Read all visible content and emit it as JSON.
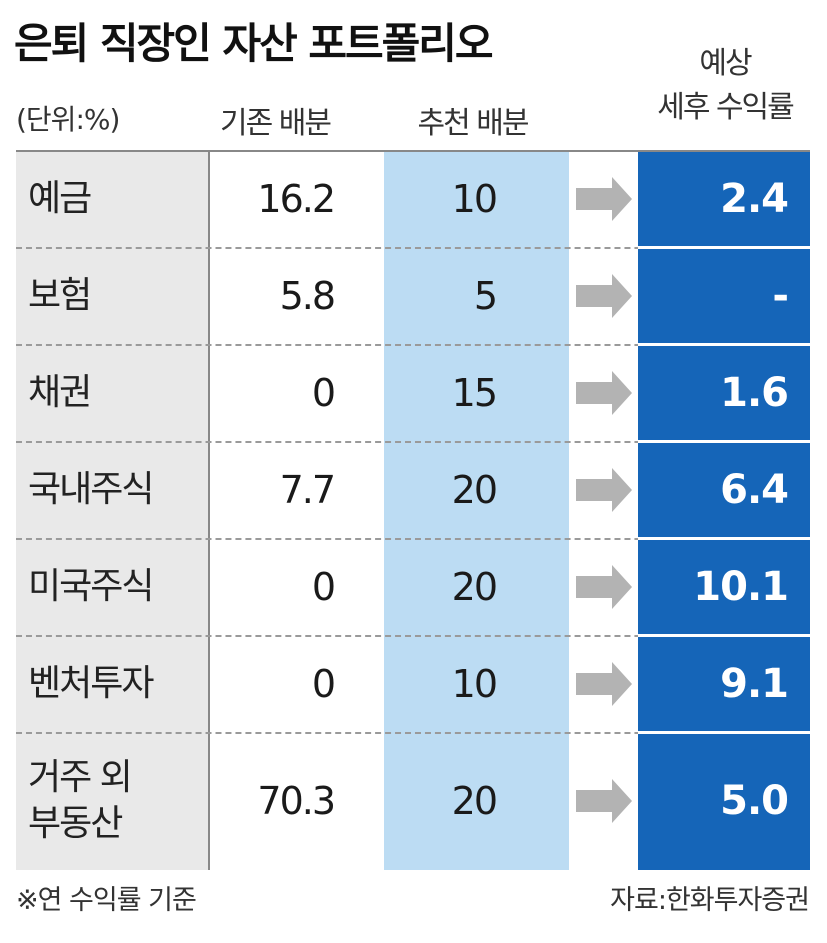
{
  "title": "은퇴 직장인 자산 포트폴리오",
  "unit": "(단위:%)",
  "headers": {
    "existing": "기존 배분",
    "recommended": "추천 배분",
    "yield_line1": "예상",
    "yield_line2": "세후 수익률"
  },
  "footnote": "※연 수익률 기준",
  "source": "자료:한화투자증권",
  "colors": {
    "category_bg": "#e9e9e9",
    "recommended_bg": "#bcdcf3",
    "yield_bg": "#1565b8",
    "arrow": "#b3b3b3"
  },
  "chart_data": {
    "type": "table",
    "title": "은퇴 직장인 자산 포트폴리오",
    "unit": "(단위:%)",
    "columns": [
      "기존 배분",
      "추천 배분",
      "예상 세후 수익률"
    ],
    "rows": [
      {
        "category": "예금",
        "category_line2": "",
        "existing": "16.2",
        "recommended": "10",
        "yield": "2.4"
      },
      {
        "category": "보험",
        "category_line2": "",
        "existing": "5.8",
        "recommended": "5",
        "yield": "-"
      },
      {
        "category": "채권",
        "category_line2": "",
        "existing": "0",
        "recommended": "15",
        "yield": "1.6"
      },
      {
        "category": "국내주식",
        "category_line2": "",
        "existing": "7.7",
        "recommended": "20",
        "yield": "6.4"
      },
      {
        "category": "미국주식",
        "category_line2": "",
        "existing": "0",
        "recommended": "20",
        "yield": "10.1"
      },
      {
        "category": "벤처투자",
        "category_line2": "",
        "existing": "0",
        "recommended": "10",
        "yield": "9.1"
      },
      {
        "category": "거주 외",
        "category_line2": "부동산",
        "existing": "70.3",
        "recommended": "20",
        "yield": "5.0"
      }
    ]
  }
}
